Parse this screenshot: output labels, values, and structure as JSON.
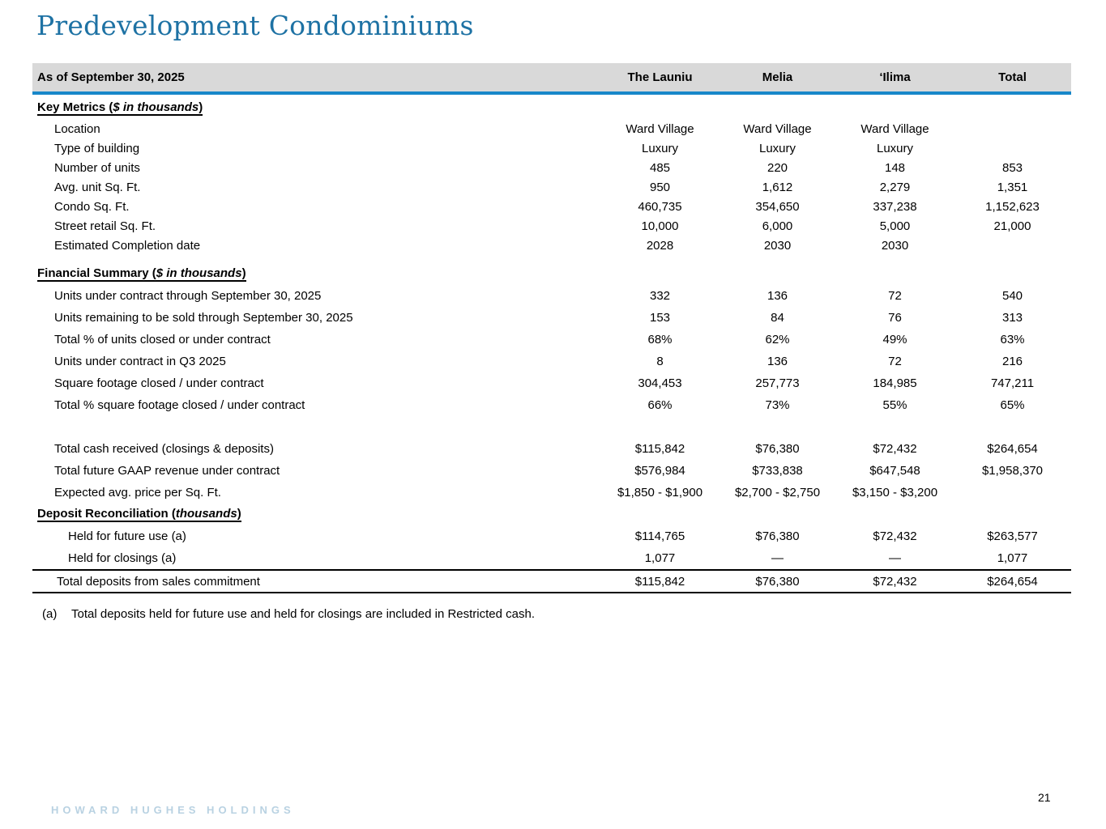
{
  "title": "Predevelopment Condominiums",
  "colors": {
    "title_blue": "#1E72A4",
    "rule_blue": "#1787C9",
    "band_gray": "#D9D9D9",
    "logo_blue": "#B9D2E2"
  },
  "table": {
    "as_of_label": "As of September 30, 2025",
    "columns": [
      "The Launiu",
      "Melia",
      "‘Ilima",
      "Total"
    ],
    "sections": [
      {
        "heading": {
          "text": "Key Metrics (",
          "italic": "$ in thousands",
          "close": ")"
        },
        "rows": [
          {
            "label": "Location",
            "values": [
              "Ward Village",
              "Ward Village",
              "Ward Village",
              ""
            ]
          },
          {
            "label": "Type of building",
            "values": [
              "Luxury",
              "Luxury",
              "Luxury",
              ""
            ]
          },
          {
            "label": "Number of units",
            "values": [
              "485",
              "220",
              "148",
              "853"
            ]
          },
          {
            "label": "Avg. unit Sq. Ft.",
            "values": [
              "950",
              "1,612",
              "2,279",
              "1,351"
            ]
          },
          {
            "label": "Condo Sq. Ft.",
            "values": [
              "460,735",
              "354,650",
              "337,238",
              "1,152,623"
            ]
          },
          {
            "label": "Street retail Sq. Ft.",
            "values": [
              "10,000",
              "6,000",
              "5,000",
              "21,000"
            ]
          },
          {
            "label": "Estimated Completion date",
            "values": [
              "2028",
              "2030",
              "2030",
              ""
            ]
          }
        ]
      },
      {
        "heading": {
          "text": "Financial Summary (",
          "italic": "$ in thousands",
          "close": ")"
        },
        "rows": [
          {
            "label": "Units under contract through September 30, 2025",
            "values": [
              "332",
              "136",
              "72",
              "540"
            ]
          },
          {
            "label": "Units remaining to be sold through September 30, 2025",
            "values": [
              "153",
              "84",
              "76",
              "313"
            ]
          },
          {
            "label": "Total % of units closed or under contract",
            "values": [
              "68%",
              "62%",
              "49%",
              "63%"
            ]
          },
          {
            "label": "Units under contract in Q3 2025",
            "values": [
              "8",
              "136",
              "72",
              "216"
            ]
          },
          {
            "label": "Square footage closed / under contract",
            "values": [
              "304,453",
              "257,773",
              "184,985",
              "747,211"
            ]
          },
          {
            "label": "Total % square footage closed / under contract",
            "values": [
              "66%",
              "73%",
              "55%",
              "65%"
            ]
          },
          {
            "label": "",
            "values": [
              "",
              "",
              "",
              ""
            ],
            "spacer": true
          },
          {
            "label": "Total cash received (closings & deposits)",
            "values": [
              "$115,842",
              "$76,380",
              "$72,432",
              "$264,654"
            ]
          },
          {
            "label": "Total future GAAP revenue under contract",
            "values": [
              "$576,984",
              "$733,838",
              "$647,548",
              "$1,958,370"
            ]
          },
          {
            "label": "Expected avg. price per Sq. Ft.",
            "values": [
              "$1,850 - $1,900",
              "$2,700 - $2,750",
              "$3,150 - $3,200",
              ""
            ]
          }
        ]
      },
      {
        "heading": {
          "text": "Deposit Reconciliation (",
          "italic": "thousands",
          "close": ")"
        },
        "rows": [
          {
            "label": "Held for future use (a)",
            "values": [
              "$114,765",
              "$76,380",
              "$72,432",
              "$263,577"
            ],
            "indent": 2
          },
          {
            "label": "Held for closings (a)",
            "values": [
              "1,077",
              "—",
              "—",
              "1,077"
            ],
            "indent": 2
          },
          {
            "label": "Total deposits from sales commitment",
            "values": [
              "$115,842",
              "$76,380",
              "$72,432",
              "$264,654"
            ],
            "total": true
          }
        ]
      }
    ]
  },
  "footnote": {
    "marker": "(a)",
    "text": "Total deposits held for future use and held for closings are included in Restricted cash."
  },
  "footer": {
    "logo": "HOWARD HUGHES HOLDINGS",
    "page": "21"
  }
}
